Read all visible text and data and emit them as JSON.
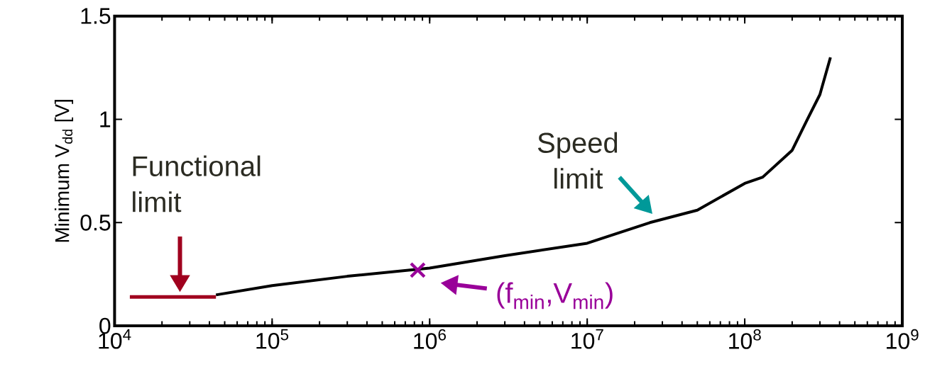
{
  "chart_data": {
    "type": "line",
    "ylabel": "Minimum V$_{dd}$ [V]",
    "log": "x",
    "xlim": [
      10000,
      1000000000
    ],
    "ylim": [
      0,
      1.5
    ],
    "xticks": [
      {
        "value": 10000,
        "label": "10$^{4}$"
      },
      {
        "value": 100000,
        "label": "10$^{5}$"
      },
      {
        "value": 1000000,
        "label": "10$^{6}$"
      },
      {
        "value": 10000000,
        "label": "10$^{7}$"
      },
      {
        "value": 100000000,
        "label": "10$^{8}$"
      },
      {
        "value": 1000000000,
        "label": "10$^{9}$"
      }
    ],
    "yticks": [
      0,
      0.5,
      1,
      1.5
    ],
    "series": [
      {
        "color": "#000000",
        "x": [
          44000,
          100000,
          300000,
          1000000,
          3000000,
          10000000,
          25000000,
          50000000,
          100000000,
          130000000,
          200000000,
          250000000,
          300000000,
          350000000
        ],
        "values": [
          0.15,
          0.195,
          0.24,
          0.28,
          0.34,
          0.4,
          0.5,
          0.56,
          0.69,
          0.72,
          0.85,
          1.0,
          1.12,
          1.3
        ]
      },
      {
        "color": "#a0001e",
        "x": [
          12500,
          44000
        ],
        "values": [
          0.14,
          0.14
        ]
      },
      {
        "type": "scatter",
        "color": "#990099",
        "marker": "cross",
        "x": [
          840000
        ],
        "values": [
          0.27
        ]
      }
    ],
    "annotations": [
      {
        "text": "Functional limit",
        "x": 26000,
        "y": 0.14
      },
      {
        "text": "Speed limit",
        "x": 26000000,
        "y": 0.5
      },
      {
        "text": "(f$_{min}$,V$_{min}$)",
        "x": 840000,
        "y": 0.27
      }
    ]
  }
}
